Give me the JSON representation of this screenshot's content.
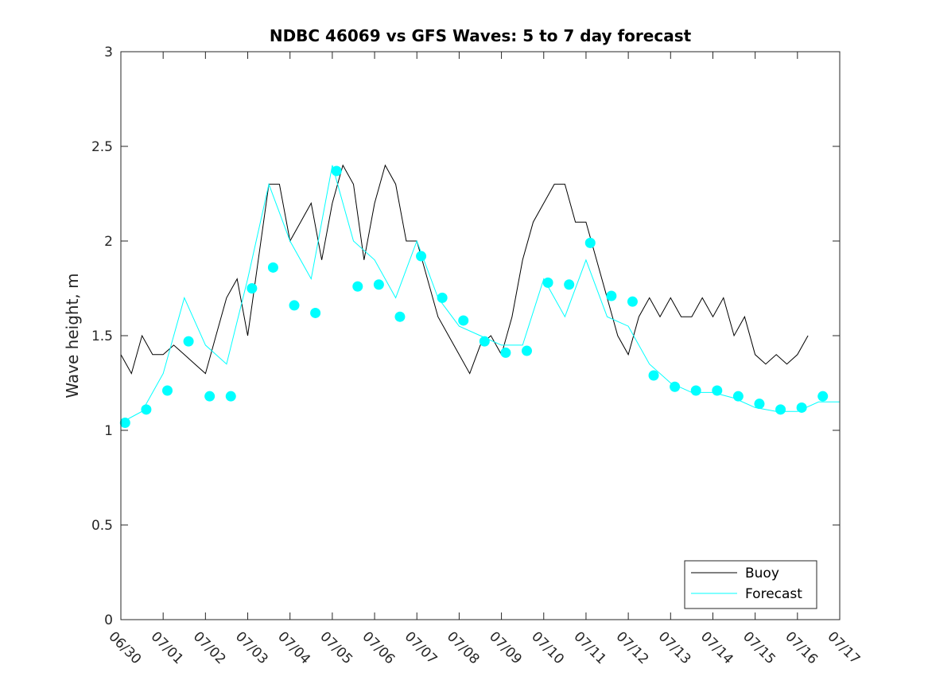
{
  "chart_data": {
    "type": "line",
    "title": "NDBC 46069 vs GFS Waves: 5 to 7 day forecast",
    "xlabel": "",
    "ylabel": "Wave height, m",
    "ylim": [
      0,
      3
    ],
    "yticks": [
      0,
      0.5,
      1,
      1.5,
      2,
      2.5,
      3
    ],
    "ytick_labels": [
      "0",
      "0.5",
      "1",
      "1.5",
      "2",
      "2.5",
      "3"
    ],
    "xlim": [
      0,
      17
    ],
    "xticks": [
      0,
      1,
      2,
      3,
      4,
      5,
      6,
      7,
      8,
      9,
      10,
      11,
      12,
      13,
      14,
      15,
      16,
      17
    ],
    "xtick_labels": [
      "06/30",
      "07/01",
      "07/02",
      "07/03",
      "07/04",
      "07/05",
      "07/06",
      "07/07",
      "07/08",
      "07/09",
      "07/10",
      "07/11",
      "07/12",
      "07/13",
      "07/14",
      "07/15",
      "07/16",
      "07/17"
    ],
    "x_unit": "days since 06/30 00:00",
    "legend": {
      "placement": "bottom-right",
      "entries": [
        "Buoy",
        "Forecast"
      ]
    },
    "colors": {
      "buoy": "#000000",
      "forecast": "#00ffff",
      "markers": "#00ffff"
    },
    "series": [
      {
        "name": "Buoy",
        "x": [
          0.0,
          0.25,
          0.5,
          0.75,
          1.0,
          1.25,
          1.5,
          1.75,
          2.0,
          2.25,
          2.5,
          2.75,
          3.0,
          3.25,
          3.5,
          3.75,
          4.0,
          4.25,
          4.5,
          4.75,
          5.0,
          5.25,
          5.5,
          5.75,
          6.0,
          6.25,
          6.5,
          6.75,
          7.0,
          7.25,
          7.5,
          7.75,
          8.0,
          8.25,
          8.5,
          8.75,
          9.0,
          9.25,
          9.5,
          9.75,
          10.0,
          10.25,
          10.5,
          10.75,
          11.0,
          11.25,
          11.5,
          11.75,
          12.0,
          12.25,
          12.5,
          12.75,
          13.0,
          13.25,
          13.5,
          13.75,
          14.0,
          14.25,
          14.5,
          14.75,
          15.0,
          15.25,
          15.5,
          15.75,
          16.0,
          16.25
        ],
        "y": [
          1.4,
          1.3,
          1.5,
          1.4,
          1.4,
          1.45,
          1.4,
          1.35,
          1.3,
          1.5,
          1.7,
          1.8,
          1.5,
          1.9,
          2.3,
          2.3,
          2.0,
          2.1,
          2.2,
          1.9,
          2.2,
          2.4,
          2.3,
          1.9,
          2.2,
          2.4,
          2.3,
          2.0,
          2.0,
          1.8,
          1.6,
          1.5,
          1.4,
          1.3,
          1.45,
          1.5,
          1.4,
          1.6,
          1.9,
          2.1,
          2.2,
          2.3,
          2.3,
          2.1,
          2.1,
          1.9,
          1.7,
          1.5,
          1.4,
          1.6,
          1.7,
          1.6,
          1.7,
          1.6,
          1.6,
          1.7,
          1.6,
          1.7,
          1.5,
          1.6,
          1.4,
          1.35,
          1.4,
          1.35,
          1.4,
          1.5
        ]
      },
      {
        "name": "Forecast",
        "x": [
          0.0,
          0.5,
          1.0,
          1.5,
          2.0,
          2.5,
          3.0,
          3.5,
          4.0,
          4.5,
          5.0,
          5.5,
          6.0,
          6.5,
          7.0,
          7.5,
          8.0,
          8.5,
          9.0,
          9.5,
          10.0,
          10.5,
          11.0,
          11.5,
          12.0,
          12.5,
          13.0,
          13.5,
          14.0,
          14.5,
          15.0,
          15.5,
          16.0,
          16.5,
          17.0
        ],
        "y": [
          1.04,
          1.1,
          1.3,
          1.7,
          1.45,
          1.35,
          1.8,
          2.3,
          2.0,
          1.8,
          2.4,
          2.0,
          1.9,
          1.7,
          2.0,
          1.7,
          1.55,
          1.5,
          1.45,
          1.45,
          1.8,
          1.6,
          1.9,
          1.6,
          1.55,
          1.35,
          1.25,
          1.2,
          1.2,
          1.17,
          1.12,
          1.1,
          1.1,
          1.15,
          1.15
        ]
      }
    ],
    "markers": {
      "x": [
        0.1,
        0.6,
        1.1,
        1.6,
        2.1,
        2.6,
        3.1,
        3.6,
        4.1,
        4.6,
        5.1,
        5.6,
        6.1,
        6.6,
        7.1,
        7.6,
        8.1,
        8.6,
        9.1,
        9.6,
        10.1,
        10.6,
        11.1,
        11.6,
        12.1,
        12.6,
        13.1,
        13.6,
        14.1,
        14.6,
        15.1,
        15.6,
        16.1,
        16.6
      ],
      "y": [
        1.04,
        1.11,
        1.21,
        1.47,
        1.18,
        1.18,
        1.75,
        1.86,
        1.66,
        1.62,
        2.37,
        1.76,
        1.77,
        1.6,
        1.92,
        1.7,
        1.58,
        1.47,
        1.41,
        1.42,
        1.78,
        1.77,
        1.99,
        1.71,
        1.68,
        1.29,
        1.23,
        1.21,
        1.21,
        1.18,
        1.14,
        1.11,
        1.12,
        1.18
      ]
    }
  }
}
